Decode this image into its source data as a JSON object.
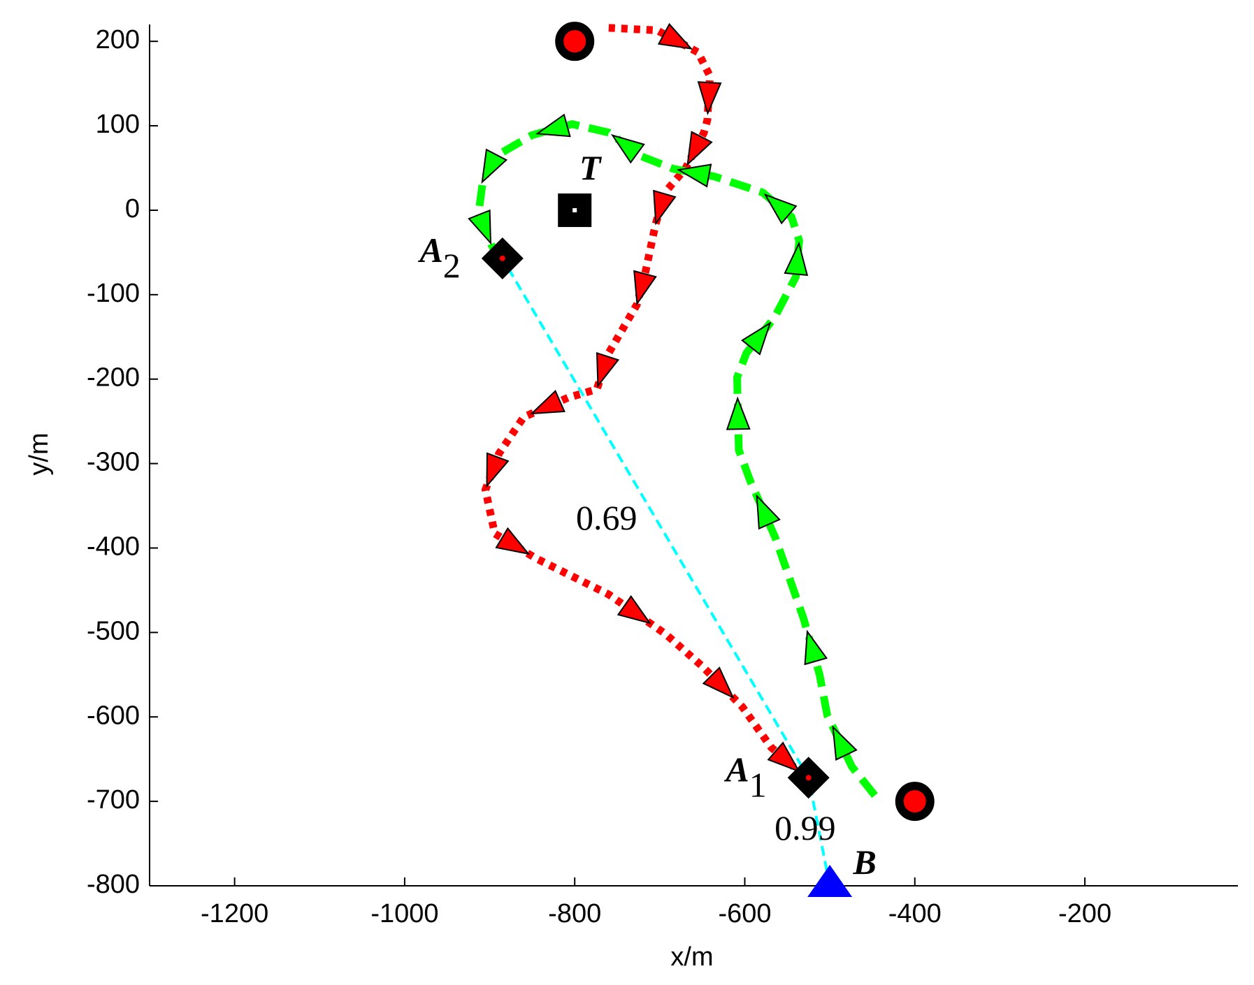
{
  "chart_data": {
    "type": "line",
    "xlabel": "x/m",
    "ylabel": "y/m",
    "xlim": [
      -1300,
      -20
    ],
    "ylim": [
      -800,
      220
    ],
    "xticks": [
      -1200,
      -1000,
      -800,
      -600,
      -400,
      -200
    ],
    "yticks": [
      200,
      100,
      0,
      -100,
      -200,
      -300,
      -400,
      -500,
      -600,
      -700,
      -800
    ],
    "series": [
      {
        "color": "#ff0000",
        "style": "dotted",
        "x": [
          -760,
          -703,
          -655,
          -641,
          -644,
          -648,
          -670,
          -694,
          -705,
          -717,
          -727,
          -760,
          -774,
          -808,
          -860,
          -889,
          -905,
          -894,
          -846,
          -760,
          -693,
          -650,
          -603,
          -569,
          -531
        ],
        "y": [
          216,
          213,
          187,
          159,
          107,
          92,
          49,
          21,
          -17,
          -74,
          -112,
          -169,
          -212,
          -222,
          -245,
          -288,
          -331,
          -383,
          -412,
          -455,
          -502,
          -540,
          -588,
          -636,
          -669
        ]
      },
      {
        "color": "#00ff00",
        "style": "dashed",
        "x": [
          -447,
          -474,
          -503,
          -512,
          -531,
          -564,
          -593,
          -607,
          -609,
          -598,
          -565,
          -540,
          -536,
          -545,
          -579,
          -636,
          -684,
          -722,
          -760,
          -803,
          -850,
          -893,
          -908,
          -913,
          -898,
          -889
        ],
        "y": [
          -693,
          -659,
          -598,
          -550,
          -483,
          -388,
          -322,
          -284,
          -198,
          -169,
          -127,
          -79,
          -36,
          -8,
          21,
          40,
          49,
          64,
          92,
          102,
          89,
          64,
          35,
          -3,
          -41,
          -57
        ]
      }
    ],
    "points": [
      {
        "shape": "circle",
        "x": -800,
        "y": 200
      },
      {
        "shape": "circle",
        "x": -400,
        "y": -700
      },
      {
        "shape": "square",
        "x": -800,
        "y": 0,
        "label": "T"
      },
      {
        "shape": "diamond",
        "x": -885,
        "y": -57,
        "label": "A",
        "sub": "2"
      },
      {
        "shape": "diamond",
        "x": -525,
        "y": -672,
        "label": "A",
        "sub": "1"
      },
      {
        "shape": "triangle",
        "x": -500,
        "y": -800,
        "label": "B"
      }
    ],
    "link": {
      "color": "#00ffff",
      "x": [
        -500,
        -525,
        -885
      ],
      "y": [
        -800,
        -672,
        -57
      ],
      "labels": [
        0.99,
        0.69
      ]
    }
  }
}
